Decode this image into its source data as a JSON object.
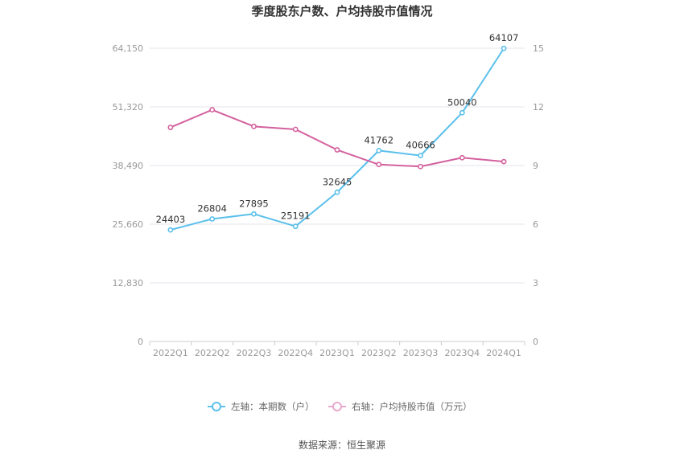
{
  "chart_data": {
    "type": "line",
    "title": "季度股东户数、户均持股市值情况",
    "categories": [
      "2022Q1",
      "2022Q2",
      "2022Q3",
      "2022Q4",
      "2023Q1",
      "2023Q2",
      "2023Q3",
      "2023Q4",
      "2024Q1"
    ],
    "left_axis": {
      "ylim": [
        0,
        64150
      ],
      "ticks": [
        0,
        12830,
        25660,
        38490,
        51320,
        64150
      ],
      "tick_labels": [
        "0",
        "12,830",
        "25,660",
        "38,490",
        "51,320",
        "64,150"
      ]
    },
    "right_axis": {
      "ylim": [
        0,
        15
      ],
      "ticks": [
        0,
        3,
        6,
        9,
        12,
        15
      ],
      "tick_labels": [
        "0",
        "3",
        "6",
        "9",
        "12",
        "15"
      ]
    },
    "series": [
      {
        "name": "左轴：本期数（户）",
        "axis": "left",
        "color": "#5bc0eb",
        "values": [
          24403,
          26804,
          27895,
          25191,
          32645,
          41762,
          40666,
          50040,
          64107
        ],
        "data_labels": [
          "24403",
          "26804",
          "27895",
          "25191",
          "32645",
          "41762",
          "40666",
          "50040",
          "64107"
        ]
      },
      {
        "name": "右轴：户均持股市值（万元）",
        "axis": "right",
        "color": "#d4619e",
        "values": [
          10.95,
          11.85,
          11.0,
          10.85,
          9.8,
          9.05,
          8.95,
          9.4,
          9.2
        ]
      }
    ],
    "grid": true,
    "legend_position": "bottom"
  },
  "source_text": "数据来源：恒生聚源"
}
